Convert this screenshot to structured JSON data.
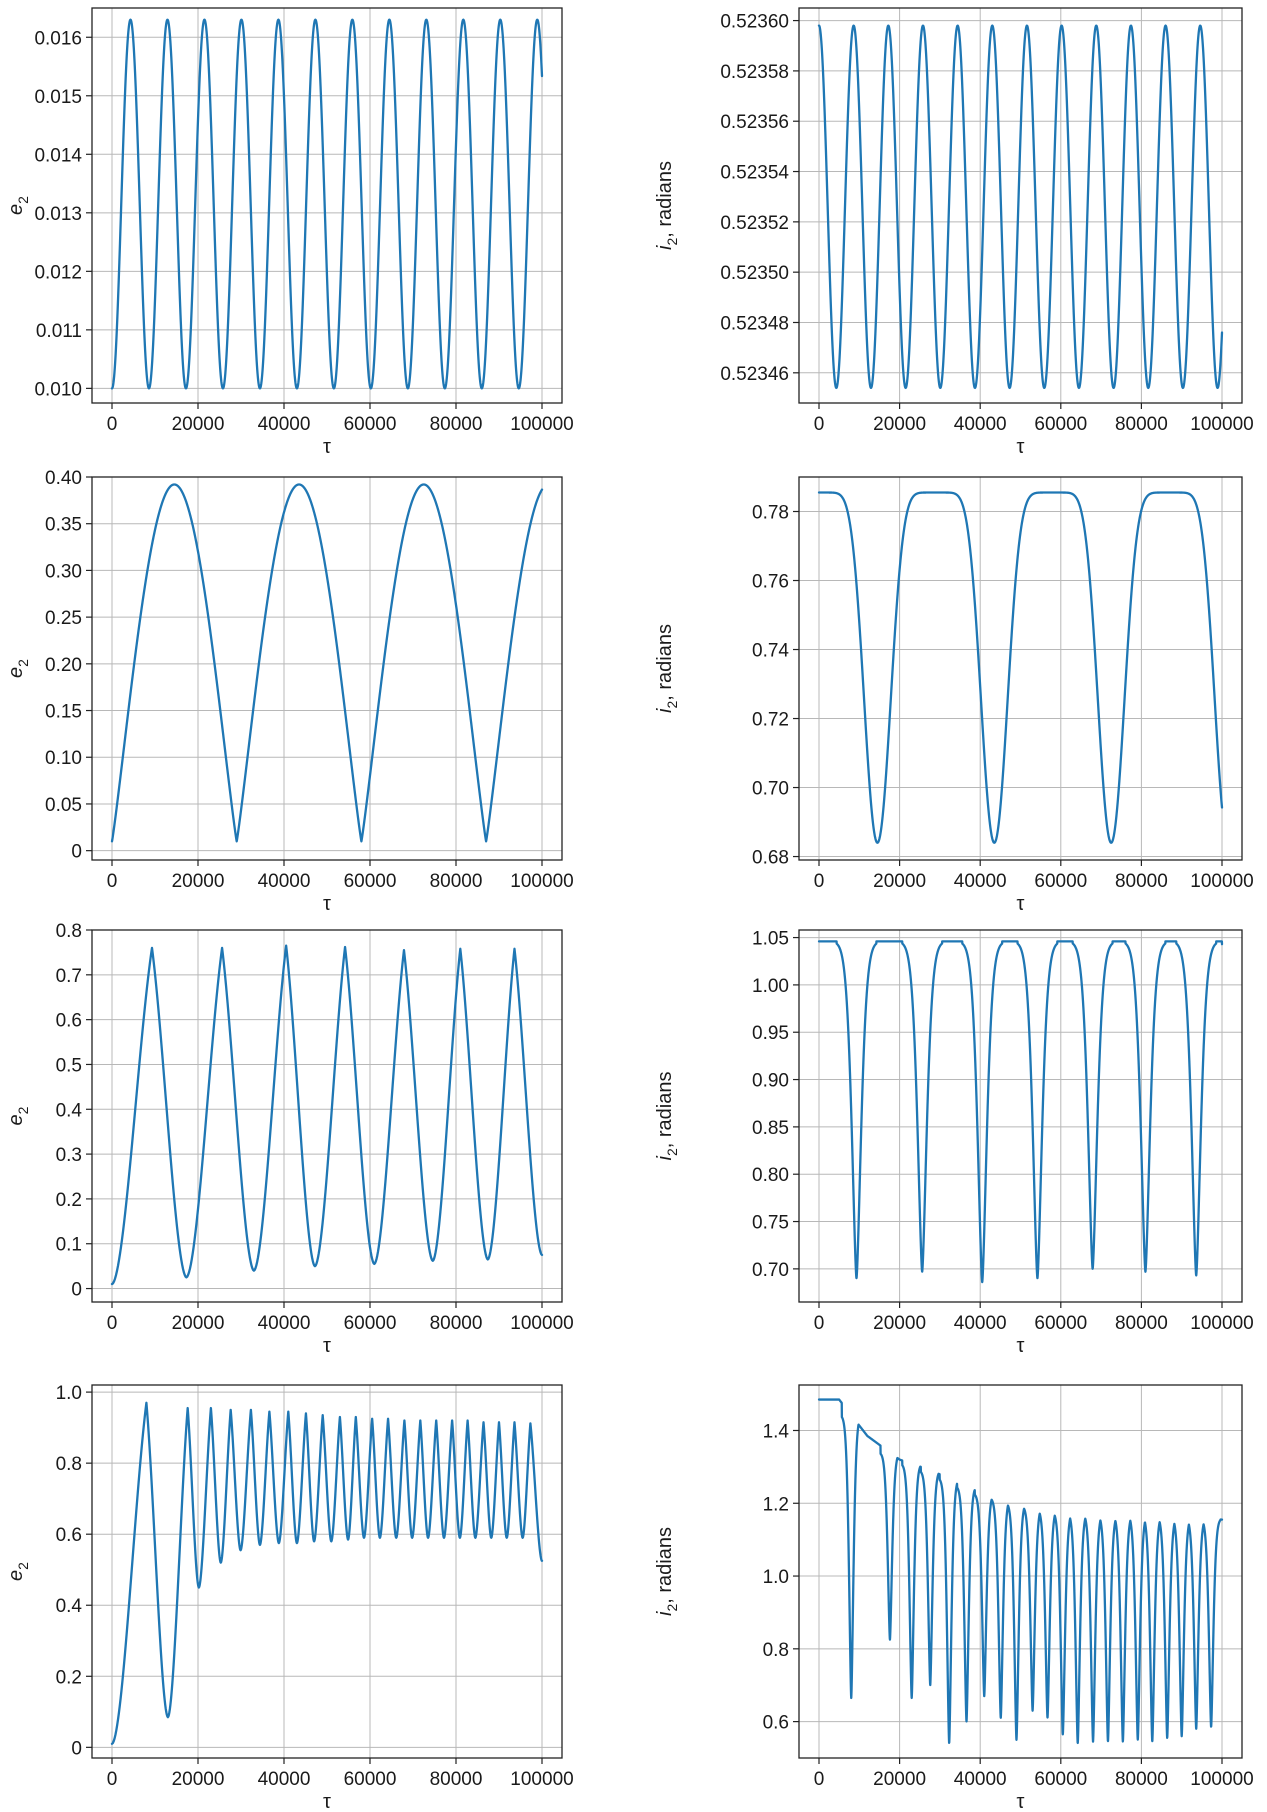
{
  "figure": {
    "color": "#1f77b4",
    "rows": 4,
    "cols": 2
  },
  "chart_data": [
    {
      "id": "r1-e2",
      "type": "line",
      "xlabel": "τ",
      "ylabel_main": "e",
      "ylabel_sub": "2",
      "ylabel_tail": "",
      "xlim": [
        0,
        100000
      ],
      "ylim": [
        0.00975,
        0.0165
      ],
      "grid": true,
      "xticks": [
        0,
        20000,
        40000,
        60000,
        80000,
        100000
      ],
      "xtick_labels": [
        "0",
        "20000",
        "40000",
        "60000",
        "80000",
        "100000"
      ],
      "yticks": [
        0.01,
        0.011,
        0.012,
        0.013,
        0.014,
        0.015,
        0.016
      ],
      "ytick_labels": [
        "0.010",
        "0.011",
        "0.012",
        "0.013",
        "0.014",
        "0.015",
        "0.016"
      ],
      "curve": {
        "kind": "cos",
        "base": 0.01,
        "peak": 0.0163,
        "period": 8600,
        "phase": 0,
        "shape": 1.0,
        "xmax": 100000
      },
      "series": [
        {
          "values_description_note": ""
        }
      ]
    },
    {
      "id": "r1-i2",
      "type": "line",
      "xlabel": "τ",
      "ylabel_main": "i",
      "ylabel_sub": "2",
      "ylabel_tail": ", radians",
      "xlim": [
        0,
        100000
      ],
      "ylim": [
        0.523448,
        0.523605
      ],
      "grid": true,
      "xticks": [
        0,
        20000,
        40000,
        60000,
        80000,
        100000
      ],
      "xtick_labels": [
        "0",
        "20000",
        "40000",
        "60000",
        "80000",
        "100000"
      ],
      "yticks": [
        0.52346,
        0.52348,
        0.5235,
        0.52352,
        0.52354,
        0.52356,
        0.52358,
        0.5236
      ],
      "ytick_labels": [
        "0.52346",
        "0.52348",
        "0.52350",
        "0.52352",
        "0.52354",
        "0.52356",
        "0.52358",
        "0.52360"
      ],
      "curve": {
        "kind": "cos",
        "base": 0.523598,
        "peak": 0.523454,
        "period": 8600,
        "phase": 0,
        "shape": 1.0,
        "xmax": 100000
      }
    },
    {
      "id": "r2-e2",
      "type": "line",
      "xlabel": "τ",
      "ylabel_main": "e",
      "ylabel_sub": "2",
      "ylabel_tail": "",
      "xlim": [
        0,
        100000
      ],
      "ylim": [
        -0.01,
        0.4
      ],
      "grid": true,
      "xticks": [
        0,
        20000,
        40000,
        60000,
        80000,
        100000
      ],
      "xtick_labels": [
        "0",
        "20000",
        "40000",
        "60000",
        "80000",
        "100000"
      ],
      "yticks": [
        0,
        0.05,
        0.1,
        0.15,
        0.2,
        0.25,
        0.3,
        0.35,
        0.4
      ],
      "ytick_labels": [
        "0",
        "0.05",
        "0.10",
        "0.15",
        "0.20",
        "0.25",
        "0.30",
        "0.35",
        "0.40"
      ],
      "curve": {
        "kind": "cos",
        "base": 0.01,
        "peak": 0.392,
        "period": 29000,
        "phase": 0,
        "shape": 0.55,
        "xmax": 100000
      }
    },
    {
      "id": "r2-i2",
      "type": "line",
      "xlabel": "τ",
      "ylabel_main": "i",
      "ylabel_sub": "2",
      "ylabel_tail": ", radians",
      "xlim": [
        0,
        100000
      ],
      "ylim": [
        0.679,
        0.79
      ],
      "grid": true,
      "xticks": [
        0,
        20000,
        40000,
        60000,
        80000,
        100000
      ],
      "xtick_labels": [
        "0",
        "20000",
        "40000",
        "60000",
        "80000",
        "100000"
      ],
      "yticks": [
        0.68,
        0.7,
        0.72,
        0.74,
        0.76,
        0.78
      ],
      "ytick_labels": [
        "0.68",
        "0.70",
        "0.72",
        "0.74",
        "0.76",
        "0.78"
      ],
      "curve": {
        "kind": "cos",
        "base": 0.7855,
        "peak": 0.684,
        "period": 29000,
        "phase": 0,
        "shape": 4.0,
        "xmax": 100000
      }
    },
    {
      "id": "r3-e2",
      "type": "line",
      "xlabel": "τ",
      "ylabel_main": "e",
      "ylabel_sub": "2",
      "ylabel_tail": "",
      "xlim": [
        0,
        100000
      ],
      "ylim": [
        -0.03,
        0.8
      ],
      "grid": true,
      "xticks": [
        0,
        20000,
        40000,
        60000,
        80000,
        100000
      ],
      "xtick_labels": [
        "0",
        "20000",
        "40000",
        "60000",
        "80000",
        "100000"
      ],
      "yticks": [
        0,
        0.1,
        0.2,
        0.3,
        0.4,
        0.5,
        0.6,
        0.7,
        0.8
      ],
      "ytick_labels": [
        "0",
        "0.1",
        "0.2",
        "0.3",
        "0.4",
        "0.5",
        "0.6",
        "0.7",
        "0.8"
      ],
      "curve": {
        "kind": "peaks",
        "start": 0.01,
        "xmax": 100000,
        "width_up": 0.45,
        "width_down": 0.55,
        "peaks": [
          [
            9300,
            0.76
          ],
          [
            25600,
            0.76
          ],
          [
            40500,
            0.765
          ],
          [
            54200,
            0.762
          ],
          [
            67900,
            0.755
          ],
          [
            81000,
            0.758
          ],
          [
            93600,
            0.758
          ]
        ],
        "troughs": [
          [
            17300,
            0.025
          ],
          [
            33000,
            0.04
          ],
          [
            47200,
            0.05
          ],
          [
            61000,
            0.055
          ],
          [
            74600,
            0.062
          ],
          [
            87400,
            0.065
          ]
        ],
        "end": [
          100000,
          0.075
        ]
      }
    },
    {
      "id": "r3-i2",
      "type": "line",
      "xlabel": "τ",
      "ylabel_main": "i",
      "ylabel_sub": "2",
      "ylabel_tail": ", radians",
      "xlim": [
        0,
        100000
      ],
      "ylim": [
        0.665,
        1.058
      ],
      "grid": true,
      "xticks": [
        0,
        20000,
        40000,
        60000,
        80000,
        100000
      ],
      "xtick_labels": [
        "0",
        "20000",
        "40000",
        "60000",
        "80000",
        "100000"
      ],
      "yticks": [
        0.7,
        0.75,
        0.8,
        0.85,
        0.9,
        0.95,
        1.0,
        1.05
      ],
      "ytick_labels": [
        "0.70",
        "0.75",
        "0.80",
        "0.85",
        "0.90",
        "0.95",
        "1.00",
        "1.05"
      ],
      "curve": {
        "kind": "dips",
        "plateau": 1.046,
        "xmax": 100000,
        "end": 1.043,
        "dipwidth": 1900,
        "dips": [
          [
            9300,
            0.69
          ],
          [
            25600,
            0.697
          ],
          [
            40500,
            0.686
          ],
          [
            54200,
            0.69
          ],
          [
            67900,
            0.7
          ],
          [
            81000,
            0.697
          ],
          [
            93600,
            0.693
          ]
        ]
      }
    },
    {
      "id": "r4-e2",
      "type": "line",
      "xlabel": "τ",
      "ylabel_main": "e",
      "ylabel_sub": "2",
      "ylabel_tail": "",
      "xlim": [
        0,
        100000
      ],
      "ylim": [
        -0.03,
        1.02
      ],
      "grid": true,
      "xticks": [
        0,
        20000,
        40000,
        60000,
        80000,
        100000
      ],
      "xtick_labels": [
        "0",
        "20000",
        "40000",
        "60000",
        "80000",
        "100000"
      ],
      "yticks": [
        0,
        0.2,
        0.4,
        0.6,
        0.8,
        1.0
      ],
      "ytick_labels": [
        "0",
        "0.2",
        "0.4",
        "0.6",
        "0.8",
        "1.0"
      ],
      "curve": {
        "kind": "peaks",
        "start": 0.01,
        "xmax": 100000,
        "width_up": 0.5,
        "width_down": 0.5,
        "peaks": [
          [
            8000,
            0.97
          ],
          [
            17600,
            0.955
          ],
          [
            23000,
            0.955
          ],
          [
            27600,
            0.95
          ],
          [
            32300,
            0.95
          ],
          [
            36600,
            0.945
          ],
          [
            41000,
            0.945
          ],
          [
            45100,
            0.94
          ],
          [
            49000,
            0.935
          ],
          [
            53000,
            0.93
          ],
          [
            56700,
            0.93
          ],
          [
            60500,
            0.925
          ],
          [
            64200,
            0.925
          ],
          [
            68000,
            0.92
          ],
          [
            71700,
            0.92
          ],
          [
            75400,
            0.92
          ],
          [
            79100,
            0.92
          ],
          [
            82700,
            0.92
          ],
          [
            86400,
            0.915
          ],
          [
            90000,
            0.915
          ],
          [
            93600,
            0.915
          ],
          [
            97300,
            0.912
          ]
        ],
        "troughs": [
          [
            13000,
            0.085
          ],
          [
            20200,
            0.45
          ],
          [
            25300,
            0.52
          ],
          [
            29900,
            0.555
          ],
          [
            34400,
            0.57
          ],
          [
            38800,
            0.575
          ],
          [
            43000,
            0.575
          ],
          [
            47000,
            0.58
          ],
          [
            51000,
            0.58
          ],
          [
            54900,
            0.585
          ],
          [
            58600,
            0.59
          ],
          [
            62300,
            0.59
          ],
          [
            66100,
            0.59
          ],
          [
            69800,
            0.59
          ],
          [
            73500,
            0.59
          ],
          [
            77200,
            0.59
          ],
          [
            80900,
            0.59
          ],
          [
            84500,
            0.59
          ],
          [
            88200,
            0.59
          ],
          [
            91800,
            0.59
          ],
          [
            95500,
            0.59
          ]
        ],
        "end": [
          100000,
          0.525
        ]
      }
    },
    {
      "id": "r4-i2",
      "type": "line",
      "xlabel": "τ",
      "ylabel_main": "i",
      "ylabel_sub": "2",
      "ylabel_tail": ", radians",
      "xlim": [
        0,
        100000
      ],
      "ylim": [
        0.5,
        1.525
      ],
      "grid": true,
      "xticks": [
        0,
        20000,
        40000,
        60000,
        80000,
        100000
      ],
      "xtick_labels": [
        "0",
        "20000",
        "40000",
        "60000",
        "80000",
        "100000"
      ],
      "yticks": [
        0.6,
        0.8,
        1.0,
        1.2,
        1.4
      ],
      "ytick_labels": [
        "0.6",
        "0.8",
        "1.0",
        "1.2",
        "1.4"
      ],
      "curve": {
        "kind": "dips",
        "plateau": 1.485,
        "xmax": 100000,
        "end": 1.155,
        "dipwidth": 900,
        "tops_list": true,
        "tops": [
          [
            0,
            1.485
          ],
          [
            5000,
            1.485
          ],
          [
            12000,
            1.385
          ],
          [
            20000,
            1.32
          ],
          [
            25300,
            1.3
          ],
          [
            29900,
            1.28
          ],
          [
            34400,
            1.26
          ],
          [
            38800,
            1.235
          ],
          [
            43000,
            1.22
          ],
          [
            47000,
            1.21
          ],
          [
            51000,
            1.195
          ],
          [
            54900,
            1.19
          ],
          [
            58600,
            1.18
          ],
          [
            62300,
            1.175
          ],
          [
            66100,
            1.175
          ],
          [
            69800,
            1.17
          ],
          [
            73500,
            1.17
          ],
          [
            77200,
            1.17
          ],
          [
            80900,
            1.17
          ],
          [
            84500,
            1.165
          ],
          [
            88200,
            1.165
          ],
          [
            91800,
            1.16
          ],
          [
            95500,
            1.16
          ],
          [
            100000,
            1.155
          ]
        ],
        "dips": [
          [
            8000,
            0.665
          ],
          [
            17600,
            0.825
          ],
          [
            23000,
            0.665
          ],
          [
            27600,
            0.7
          ],
          [
            32300,
            0.54
          ],
          [
            36600,
            0.6
          ],
          [
            41000,
            0.67
          ],
          [
            45100,
            0.61
          ],
          [
            49000,
            0.55
          ],
          [
            53000,
            0.63
          ],
          [
            56700,
            0.61
          ],
          [
            60500,
            0.565
          ],
          [
            64200,
            0.54
          ],
          [
            68000,
            0.545
          ],
          [
            71700,
            0.545
          ],
          [
            75400,
            0.545
          ],
          [
            79100,
            0.55
          ],
          [
            82700,
            0.545
          ],
          [
            86400,
            0.555
          ],
          [
            90000,
            0.56
          ],
          [
            93600,
            0.58
          ],
          [
            97300,
            0.585
          ]
        ]
      }
    }
  ]
}
